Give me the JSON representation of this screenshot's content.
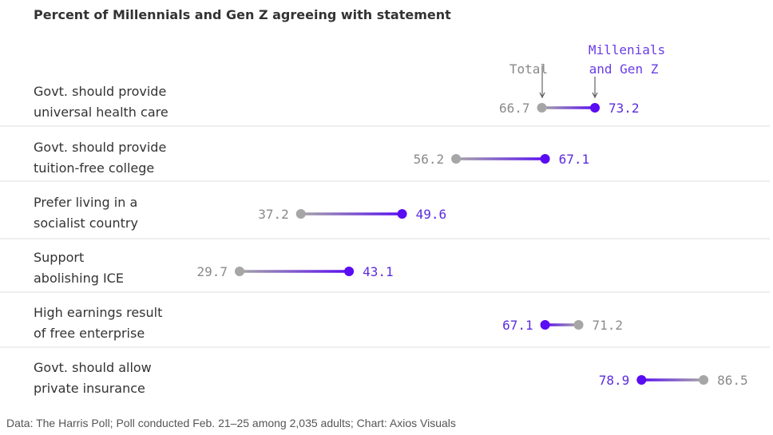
{
  "chart_data": {
    "type": "dumbbell",
    "title": "Percent of Millennials and Gen Z agreeing with statement",
    "legend": {
      "total": "Total",
      "millennials_line1": "Millenials",
      "millennials_line2": "and Gen Z"
    },
    "series": [
      {
        "name": "Total",
        "color": "#a6a6a6"
      },
      {
        "name": "Millenials and Gen Z",
        "color": "#5a0cf2"
      }
    ],
    "categories": [
      [
        "Govt. should provide",
        "universal health care"
      ],
      [
        "Govt. should provide",
        "tuition-free college"
      ],
      [
        "Prefer living in a",
        "socialist country"
      ],
      [
        "Support",
        "abolishing ICE"
      ],
      [
        "High earnings result",
        "of free enterprise"
      ],
      [
        "Govt. should allow",
        "private insurance"
      ]
    ],
    "total": [
      66.7,
      56.2,
      37.2,
      29.7,
      71.2,
      86.5
    ],
    "millennials_genz": [
      73.2,
      67.1,
      49.6,
      43.1,
      67.1,
      78.9
    ],
    "total_labels": [
      "66.7",
      "56.2",
      "37.2",
      "29.7",
      "71.2",
      "86.5"
    ],
    "millennials_labels": [
      "73.2",
      "67.1",
      "49.6",
      "43.1",
      "67.1",
      "78.9"
    ],
    "source": "Data: The Harris Poll; Poll conducted Feb. 21–25 among 2,035 adults; Chart: Axios Visuals"
  }
}
